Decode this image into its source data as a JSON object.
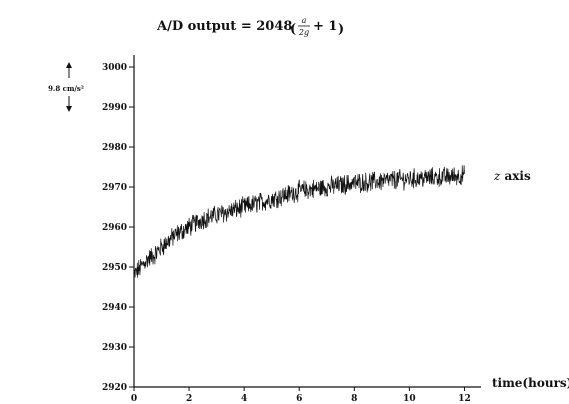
{
  "chart_data": {
    "type": "line",
    "title_prefix": "A/D output = 2048",
    "title_frac_num": "a",
    "title_frac_den": "2g",
    "title_suffix": "+ 1",
    "xlabel": "time(hours)",
    "ylabel": "",
    "scale_label": "9.8 cm/s²",
    "xlim": [
      0,
      12.6
    ],
    "ylim": [
      2920,
      3003
    ],
    "x_ticks": [
      0,
      2,
      4,
      6,
      8,
      10,
      12
    ],
    "y_ticks": [
      2920,
      2930,
      2940,
      2950,
      2960,
      2970,
      2980,
      2990,
      3000
    ],
    "grid": false,
    "series": [
      {
        "name": "z axis",
        "x": [
          0,
          0.25,
          0.5,
          0.75,
          1,
          1.5,
          2,
          2.5,
          3,
          3.5,
          4,
          4.5,
          5,
          5.5,
          6,
          6.5,
          7,
          7.5,
          8,
          8.5,
          9,
          9.5,
          10,
          10.5,
          11,
          11.5,
          12
        ],
        "values": [
          2948,
          2950,
          2952,
          2953,
          2955,
          2958,
          2960,
          2962,
          2963,
          2964,
          2965,
          2966,
          2967,
          2968,
          2969,
          2969.5,
          2970,
          2970.5,
          2971,
          2971.2,
          2971.5,
          2971.8,
          2972,
          2972.2,
          2972.4,
          2972.6,
          2973
        ],
        "noise_amplitude": 2.2
      }
    ]
  }
}
